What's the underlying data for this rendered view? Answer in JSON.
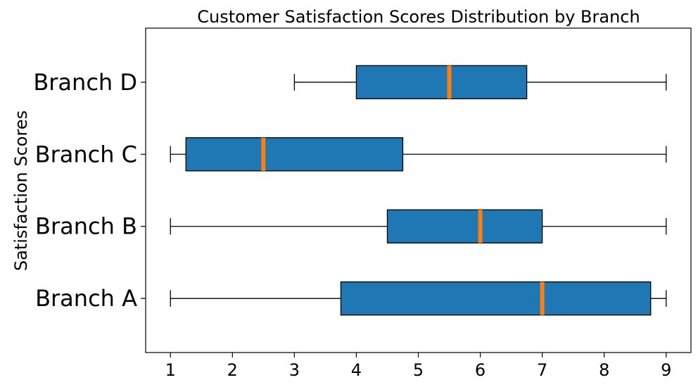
{
  "chart_data": {
    "type": "boxplot",
    "orientation": "horizontal",
    "title": "Customer Satisfaction Scores Distribution by Branch",
    "xlabel": "",
    "ylabel": "Satisfaction Scores",
    "xlim": [
      0.6,
      9.4
    ],
    "xticks": [
      1,
      2,
      3,
      4,
      5,
      6,
      7,
      8,
      9
    ],
    "grid": false,
    "box_color": "#1f77b4",
    "median_color": "#ff7f0e",
    "series": [
      {
        "name": "Branch A",
        "whisker_low": 1,
        "q1": 3.75,
        "median": 7,
        "q3": 8.75,
        "whisker_high": 9
      },
      {
        "name": "Branch B",
        "whisker_low": 1,
        "q1": 4.5,
        "median": 6,
        "q3": 7,
        "whisker_high": 9
      },
      {
        "name": "Branch C",
        "whisker_low": 1,
        "q1": 1.25,
        "median": 2.5,
        "q3": 4.75,
        "whisker_high": 9
      },
      {
        "name": "Branch D",
        "whisker_low": 3,
        "q1": 4,
        "median": 5.5,
        "q3": 6.75,
        "whisker_high": 9
      }
    ]
  }
}
